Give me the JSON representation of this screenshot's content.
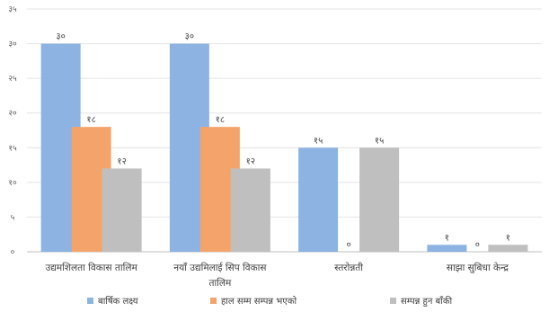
{
  "chart_data": {
    "type": "bar",
    "title": "",
    "xlabel": "",
    "ylabel": "",
    "ylim": [
      0,
      35
    ],
    "y_ticks": [
      0,
      5,
      10,
      15,
      20,
      25,
      30,
      35
    ],
    "y_tick_labels": [
      "०",
      "५",
      "१०",
      "१५",
      "२०",
      "२५",
      "३०",
      "३५"
    ],
    "grid": true,
    "legend_position": "bottom",
    "categories": [
      [
        "उद्यमशिलता विकास तालिम"
      ],
      [
        "नयाँ उद्यमिलाई सिप विकास",
        "तालिम"
      ],
      [
        "स्तरोन्नती"
      ],
      [
        "साझा सुबिधा केन्द्र"
      ]
    ],
    "series": [
      {
        "name": "बार्षिक लक्ष्य",
        "color": "#8DB3E2",
        "values": [
          30,
          30,
          15,
          1
        ],
        "labels": [
          "३०",
          "३०",
          "१५",
          "१"
        ]
      },
      {
        "name": "हाल सम्म सम्पन्न भएको",
        "color": "#F4A46A",
        "values": [
          18,
          18,
          0,
          0
        ],
        "labels": [
          "१८",
          "१८",
          "०",
          "०"
        ]
      },
      {
        "name": "सम्पन्न हुन बाँकी",
        "color": "#BFBFBF",
        "values": [
          12,
          12,
          15,
          1
        ],
        "labels": [
          "१२",
          "१२",
          "१५",
          "१"
        ]
      }
    ]
  }
}
